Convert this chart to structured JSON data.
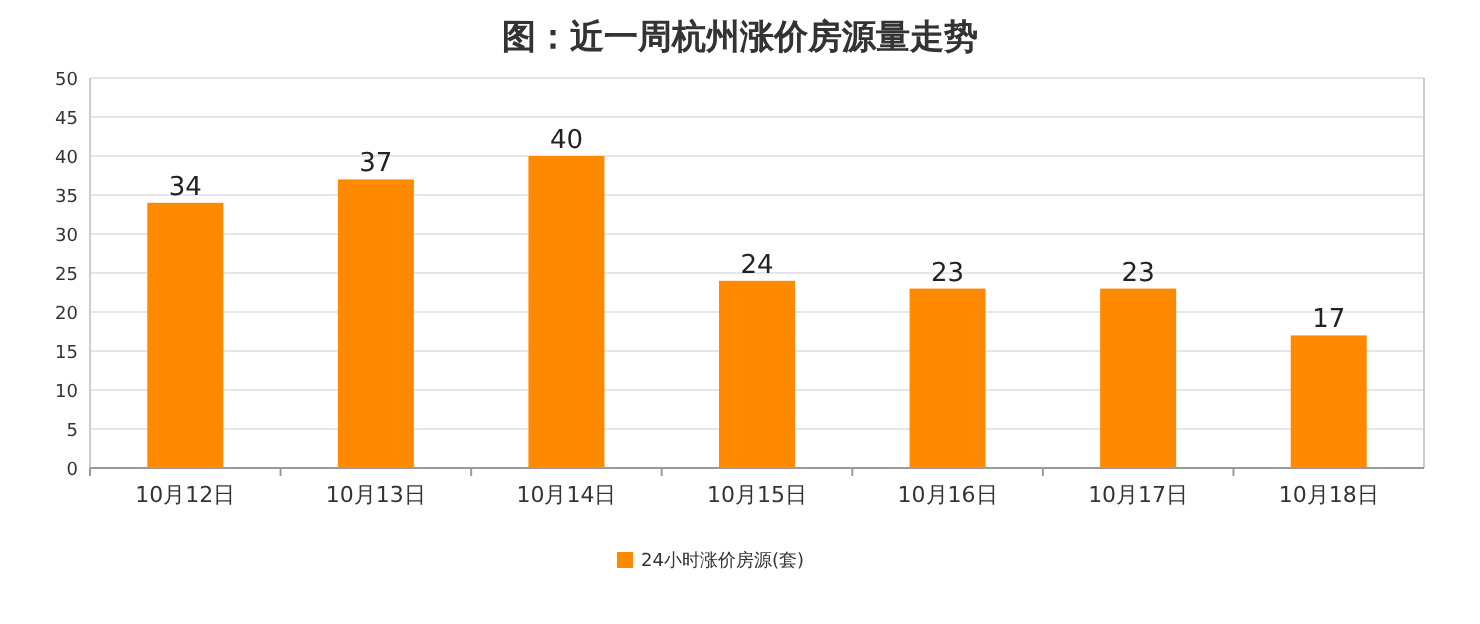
{
  "chart_data": {
    "type": "bar",
    "title": "图：近一周杭州涨价房源量走势",
    "categories": [
      "10月12日",
      "10月13日",
      "10月14日",
      "10月15日",
      "10月16日",
      "10月17日",
      "10月18日"
    ],
    "series": [
      {
        "name": "24小时涨价房源(套)",
        "color": "#ff8a00",
        "values": [
          34,
          37,
          40,
          24,
          23,
          23,
          17
        ]
      }
    ],
    "ylim": [
      0,
      50
    ],
    "yticks": [
      0,
      5,
      10,
      15,
      20,
      25,
      30,
      35,
      40,
      45,
      50
    ],
    "grid": "y",
    "legend": "bottom",
    "data_labels": true
  }
}
